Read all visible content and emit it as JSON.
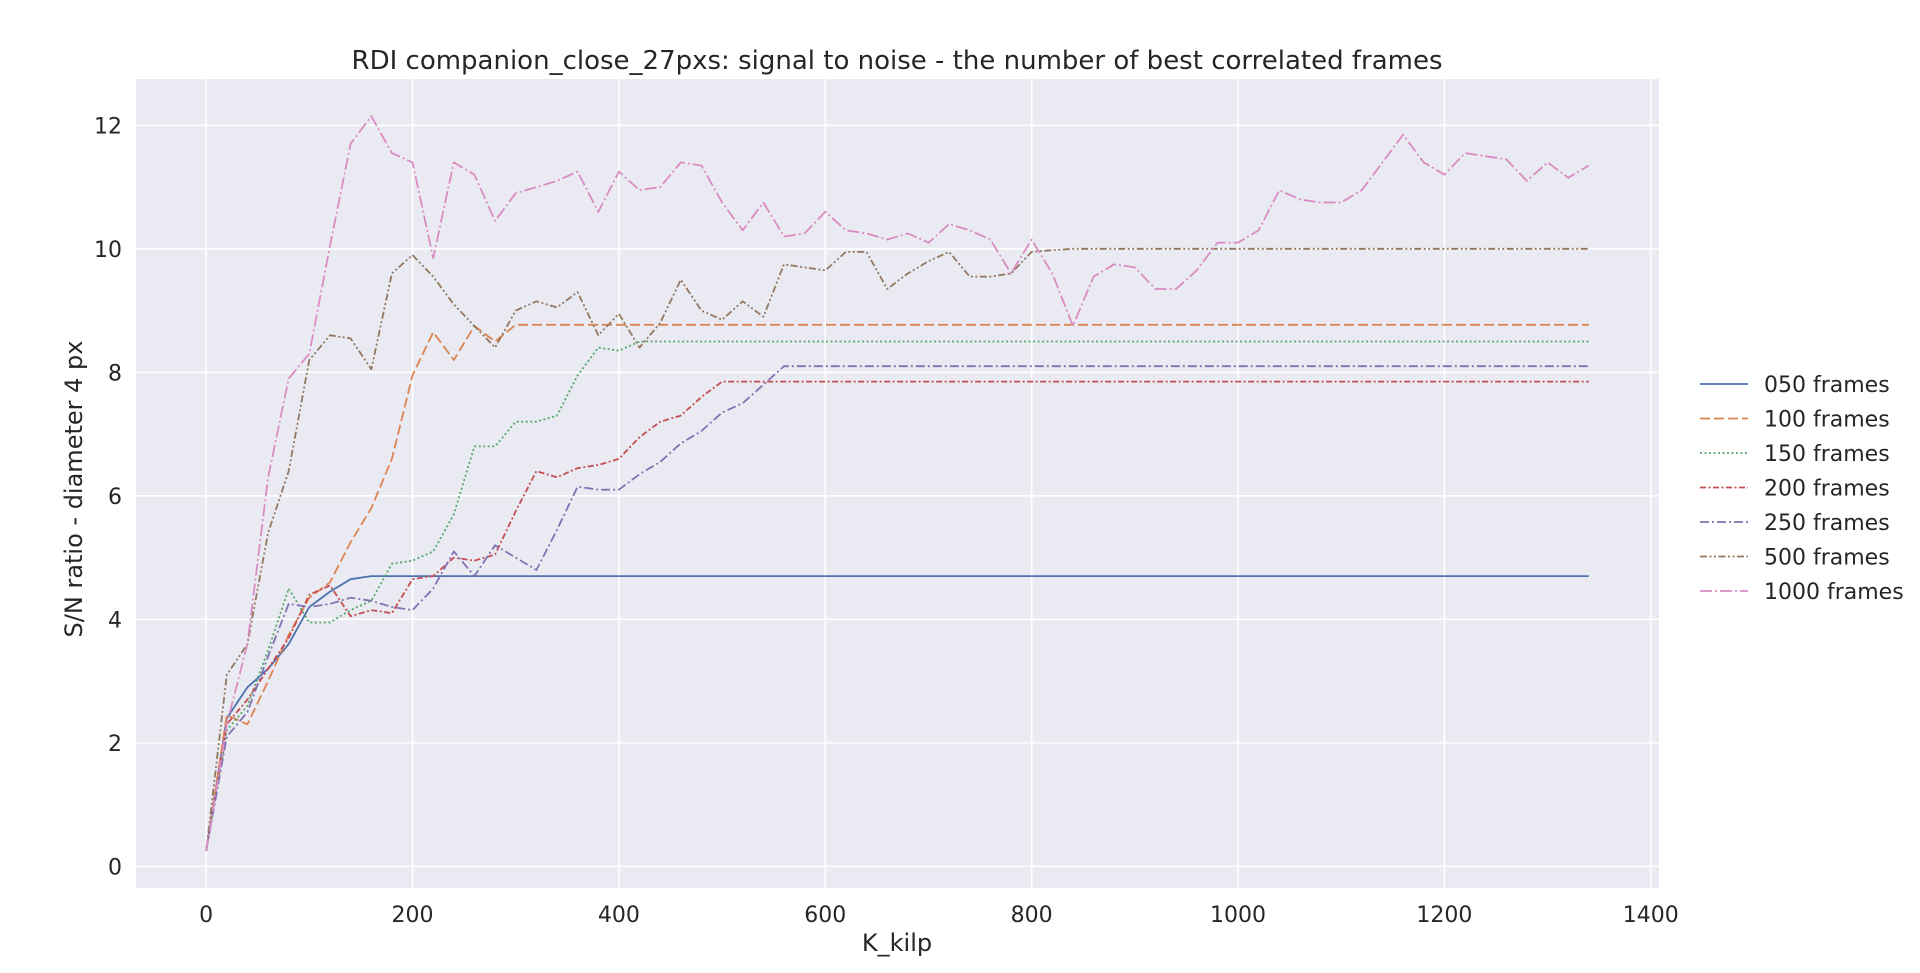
{
  "chart_data": {
    "type": "line",
    "title": "RDI companion_close_27pxs: signal to noise - the number of best correlated frames",
    "xlabel": "K_kilp",
    "ylabel": "S/N ratio - diameter 4 px",
    "xlim": [
      -68,
      1408
    ],
    "ylim": [
      -0.35,
      12.75
    ],
    "xticks": [
      0,
      200,
      400,
      600,
      800,
      1000,
      1200,
      1400
    ],
    "yticks": [
      0,
      2,
      4,
      6,
      8,
      10,
      12
    ],
    "grid": true,
    "legend_position": "right",
    "x": [
      0,
      20,
      40,
      60,
      80,
      100,
      120,
      140,
      160,
      180,
      200,
      220,
      240,
      260,
      280,
      300,
      320,
      340,
      360,
      380,
      400,
      420,
      440,
      460,
      480,
      500,
      520,
      540,
      560,
      580,
      600,
      620,
      640,
      660,
      680,
      700,
      720,
      740,
      760,
      780,
      800,
      820,
      840,
      860,
      880,
      900,
      920,
      940,
      960,
      980,
      1000,
      1020,
      1040,
      1060,
      1080,
      1100,
      1120,
      1140,
      1160,
      1180,
      1200,
      1220,
      1240,
      1260,
      1280,
      1300,
      1320,
      1340
    ],
    "series": [
      {
        "name": "050 frames",
        "color": "#4c72b0",
        "dash": "solid",
        "values": [
          0.25,
          2.4,
          2.9,
          3.2,
          3.6,
          4.2,
          4.45,
          4.65,
          4.7,
          4.7,
          4.7,
          4.7,
          4.7,
          4.7,
          4.7,
          4.7,
          4.7,
          4.7,
          4.7,
          4.7,
          4.7,
          4.7,
          4.7,
          4.7,
          4.7,
          4.7,
          4.7,
          4.7,
          4.7,
          4.7,
          4.7,
          4.7,
          4.7,
          4.7,
          4.7,
          4.7,
          4.7,
          4.7,
          4.7,
          4.7,
          4.7,
          4.7,
          4.7,
          4.7,
          4.7,
          4.7,
          4.7,
          4.7,
          4.7,
          4.7,
          4.7,
          4.7,
          4.7,
          4.7,
          4.7,
          4.7,
          4.7,
          4.7,
          4.7,
          4.7,
          4.7,
          4.7,
          4.7,
          4.7,
          4.7,
          4.7,
          4.7,
          4.7
        ]
      },
      {
        "name": "100 frames",
        "color": "#dd8452",
        "dash": "dashed",
        "values": [
          0.25,
          2.45,
          2.3,
          3.0,
          3.75,
          4.35,
          4.6,
          5.25,
          5.8,
          6.6,
          7.95,
          8.65,
          8.2,
          8.75,
          8.5,
          8.77,
          8.77,
          8.77,
          8.77,
          8.77,
          8.77,
          8.77,
          8.77,
          8.77,
          8.77,
          8.77,
          8.77,
          8.77,
          8.77,
          8.77,
          8.77,
          8.77,
          8.77,
          8.77,
          8.77,
          8.77,
          8.77,
          8.77,
          8.77,
          8.77,
          8.77,
          8.77,
          8.77,
          8.77,
          8.77,
          8.77,
          8.77,
          8.77,
          8.77,
          8.77,
          8.77,
          8.77,
          8.77,
          8.77,
          8.77,
          8.77,
          8.77,
          8.77,
          8.77,
          8.77,
          8.77,
          8.77,
          8.77,
          8.77,
          8.77,
          8.77,
          8.77,
          8.77
        ]
      },
      {
        "name": "150 frames",
        "color": "#55a868",
        "dash": "dotted",
        "values": [
          0.25,
          2.2,
          2.6,
          3.5,
          4.5,
          3.95,
          3.95,
          4.15,
          4.3,
          4.9,
          4.95,
          5.1,
          5.7,
          6.8,
          6.8,
          7.2,
          7.2,
          7.3,
          7.95,
          8.4,
          8.35,
          8.5,
          8.5,
          8.5,
          8.5,
          8.5,
          8.5,
          8.5,
          8.5,
          8.5,
          8.5,
          8.5,
          8.5,
          8.5,
          8.5,
          8.5,
          8.5,
          8.5,
          8.5,
          8.5,
          8.5,
          8.5,
          8.5,
          8.5,
          8.5,
          8.5,
          8.5,
          8.5,
          8.5,
          8.5,
          8.5,
          8.5,
          8.5,
          8.5,
          8.5,
          8.5,
          8.5,
          8.5,
          8.5,
          8.5,
          8.5,
          8.5,
          8.5,
          8.5,
          8.5,
          8.5,
          8.5,
          8.5
        ]
      },
      {
        "name": "200 frames",
        "color": "#c44e52",
        "dash": "dashdot-short",
        "values": [
          0.25,
          2.3,
          2.7,
          3.2,
          3.7,
          4.4,
          4.55,
          4.05,
          4.15,
          4.1,
          4.65,
          4.7,
          5.0,
          4.95,
          5.05,
          5.75,
          6.4,
          6.3,
          6.45,
          6.5,
          6.6,
          6.95,
          7.2,
          7.3,
          7.6,
          7.85,
          7.85,
          7.85,
          7.85,
          7.85,
          7.85,
          7.85,
          7.85,
          7.85,
          7.85,
          7.85,
          7.85,
          7.85,
          7.85,
          7.85,
          7.85,
          7.85,
          7.85,
          7.85,
          7.85,
          7.85,
          7.85,
          7.85,
          7.85,
          7.85,
          7.85,
          7.85,
          7.85,
          7.85,
          7.85,
          7.85,
          7.85,
          7.85,
          7.85,
          7.85,
          7.85,
          7.85,
          7.85,
          7.85,
          7.85,
          7.85,
          7.85,
          7.85
        ]
      },
      {
        "name": "250 frames",
        "color": "#8172b3",
        "dash": "dashdot",
        "values": [
          0.25,
          2.1,
          2.5,
          3.4,
          4.25,
          4.2,
          4.25,
          4.35,
          4.3,
          4.2,
          4.15,
          4.5,
          5.1,
          4.7,
          5.2,
          5.0,
          4.8,
          5.45,
          6.15,
          6.1,
          6.1,
          6.35,
          6.55,
          6.85,
          7.05,
          7.35,
          7.5,
          7.8,
          8.1,
          8.1,
          8.1,
          8.1,
          8.1,
          8.1,
          8.1,
          8.1,
          8.1,
          8.1,
          8.1,
          8.1,
          8.1,
          8.1,
          8.1,
          8.1,
          8.1,
          8.1,
          8.1,
          8.1,
          8.1,
          8.1,
          8.1,
          8.1,
          8.1,
          8.1,
          8.1,
          8.1,
          8.1,
          8.1,
          8.1,
          8.1,
          8.1,
          8.1,
          8.1,
          8.1,
          8.1,
          8.1,
          8.1,
          8.1
        ]
      },
      {
        "name": "500 frames",
        "color": "#937860",
        "dash": "dashdotdot",
        "values": [
          0.25,
          3.1,
          3.6,
          5.4,
          6.4,
          8.2,
          8.6,
          8.55,
          8.05,
          9.6,
          9.9,
          9.55,
          9.1,
          8.75,
          8.4,
          9.0,
          9.15,
          9.05,
          9.3,
          8.6,
          8.95,
          8.4,
          8.8,
          9.5,
          9.0,
          8.85,
          9.15,
          8.9,
          9.75,
          9.7,
          9.65,
          9.95,
          9.95,
          9.35,
          9.6,
          9.8,
          9.95,
          9.55,
          9.55,
          9.6,
          9.95,
          9.98,
          10.0,
          10.0,
          10.0,
          10.0,
          10.0,
          10.0,
          10.0,
          10.0,
          10.0,
          10.0,
          10.0,
          10.0,
          10.0,
          10.0,
          10.0,
          10.0,
          10.0,
          10.0,
          10.0,
          10.0,
          10.0,
          10.0,
          10.0,
          10.0,
          10.0,
          10.0
        ]
      },
      {
        "name": "1000 frames",
        "color": "#da8bc3",
        "dash": "dashdot-long",
        "values": [
          0.25,
          2.3,
          3.6,
          6.3,
          7.9,
          8.3,
          10.05,
          11.7,
          12.15,
          11.55,
          11.4,
          9.85,
          11.4,
          11.2,
          10.45,
          10.9,
          11.0,
          11.1,
          11.25,
          10.6,
          11.25,
          10.95,
          11.0,
          11.4,
          11.35,
          10.75,
          10.3,
          10.75,
          10.2,
          10.25,
          10.6,
          10.3,
          10.25,
          10.15,
          10.25,
          10.1,
          10.4,
          10.3,
          10.15,
          9.6,
          10.15,
          9.6,
          8.75,
          9.55,
          9.75,
          9.7,
          9.35,
          9.35,
          9.65,
          10.1,
          10.1,
          10.3,
          10.95,
          10.8,
          10.75,
          10.75,
          10.95,
          11.4,
          11.85,
          11.4,
          11.2,
          11.55,
          11.5,
          11.45,
          11.1,
          11.4,
          11.15,
          11.35
        ]
      }
    ]
  }
}
